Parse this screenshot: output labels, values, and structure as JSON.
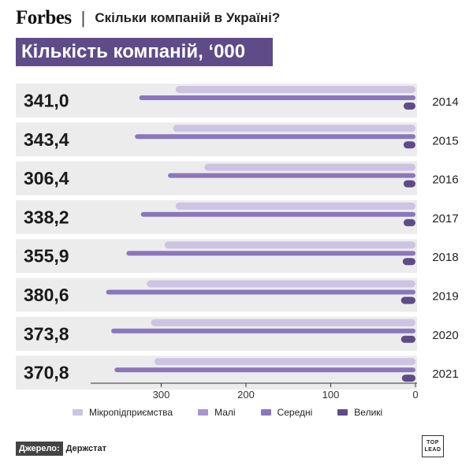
{
  "header": {
    "brand": "Forbes",
    "separator": "|",
    "headline": "Скільки компаній в Україні?"
  },
  "subtitle": "Кількість компаній, ‘000",
  "chart_data": {
    "type": "bar",
    "orientation": "horizontal",
    "categories": [
      "2014",
      "2015",
      "2016",
      "2017",
      "2018",
      "2019",
      "2020",
      "2021"
    ],
    "totals": [
      "341,0",
      "343,4",
      "306,4",
      "338,2",
      "355,9",
      "380,6",
      "373,8",
      "370,8"
    ],
    "series": [
      {
        "name": "Мікропідприємства",
        "color": "#cdc3e2",
        "values": [
          283,
          286,
          249,
          283,
          296,
          317,
          312,
          308
        ]
      },
      {
        "name": "Малі",
        "color": "#a995cf",
        "values": [
          0,
          0,
          0,
          0,
          0,
          0,
          0,
          0
        ]
      },
      {
        "name": "Середні",
        "color": "#8a77bb",
        "values": [
          326,
          331,
          292,
          324,
          341,
          365,
          359,
          355
        ]
      },
      {
        "name": "Великі",
        "color": "#5e4b88",
        "values": [
          14,
          14,
          14,
          14,
          15,
          17,
          17,
          16
        ]
      }
    ],
    "xlim": [
      380,
      0
    ],
    "ticks": [
      300,
      200,
      100,
      0
    ],
    "grid": false,
    "legend_position": "bottom"
  },
  "source": {
    "label": "Джерело:",
    "value": "Держстат"
  },
  "logo": {
    "line1": "TOP",
    "line2": "LEAD"
  }
}
